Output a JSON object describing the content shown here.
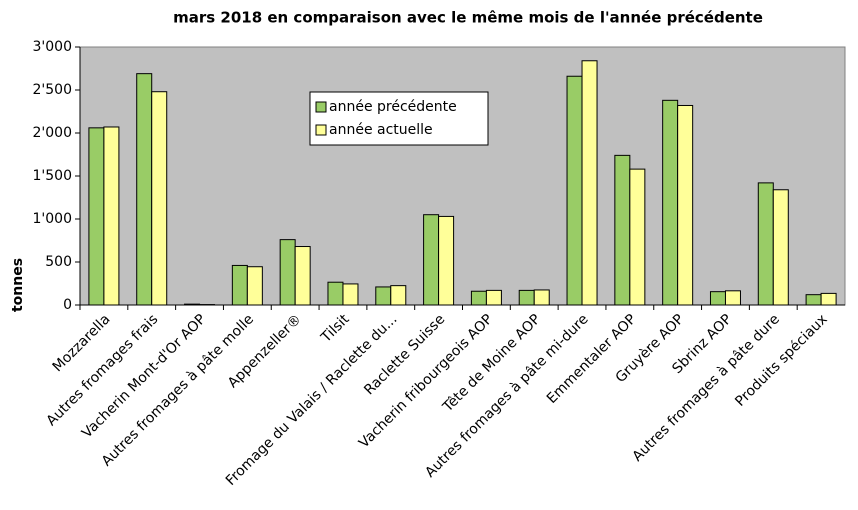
{
  "chart_data": {
    "type": "bar",
    "title": "mars 2018 en comparaison avec le même mois de l'année précédente",
    "y_label": "tonnes",
    "categories": [
      "Mozzarella",
      "Autres fromages frais",
      "Vacherin Mont-d'Or AOP",
      "Autres fromages à pâte molle",
      "Appenzeller®",
      "Tilsit",
      "Fromage du Valais / Raclette du...",
      "Raclette Suisse",
      "Vacherin fribourgeois AOP",
      "Tête de Moine AOP",
      "Autres fromages à pâte mi-dure",
      "Emmentaler AOP",
      "Gruyère AOP",
      "Sbrinz AOP",
      "Autres fromages à pâte dure",
      "Produits spéciaux"
    ],
    "series": [
      {
        "name": "année précédente",
        "color": "#99cc66",
        "values": [
          2060,
          2690,
          10,
          460,
          760,
          265,
          210,
          1050,
          160,
          170,
          2660,
          1740,
          2380,
          155,
          1420,
          120
        ]
      },
      {
        "name": "année actuelle",
        "color": "#ffff99",
        "values": [
          2070,
          2480,
          5,
          445,
          680,
          245,
          225,
          1030,
          170,
          175,
          2840,
          1580,
          2320,
          165,
          1340,
          135
        ]
      }
    ],
    "ylim": [
      0,
      3000
    ],
    "yticks": [
      0,
      500,
      {
        "value": 1000,
        "label": "1'000"
      },
      {
        "value": 1500,
        "label": "1'500"
      },
      {
        "value": 2000,
        "label": "2'000"
      },
      {
        "value": 2500,
        "label": "2'500"
      },
      {
        "value": 3000,
        "label": "3'000"
      }
    ],
    "grid": false,
    "plot_background": "#c0c0c0"
  }
}
